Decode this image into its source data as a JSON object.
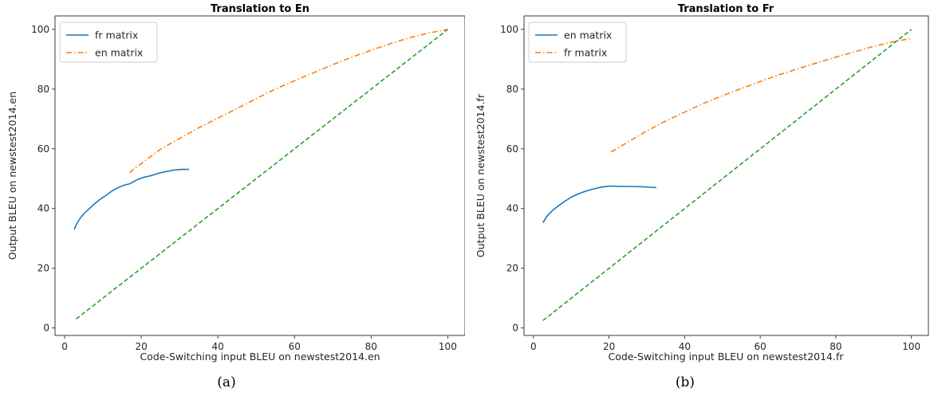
{
  "chart_data": [
    {
      "type": "line",
      "title": "Translation to En",
      "xlabel": "Code-Switching input BLEU on newstest2014.en",
      "ylabel": "Output BLEU on newstest2014.en",
      "xlim": [
        -2.5,
        104.5
      ],
      "ylim": [
        -2.5,
        104.5
      ],
      "xticks": [
        0,
        20,
        40,
        60,
        80,
        100
      ],
      "yticks": [
        0,
        20,
        40,
        60,
        80,
        100
      ],
      "grid": false,
      "legend_position": "top-left",
      "caption": "(a)",
      "series": [
        {
          "name": "fr matrix",
          "color": "#1f77b4",
          "style": "solid",
          "x": [
            2.5,
            3.2,
            4.2,
            5.2,
            6.5,
            8.0,
            9.5,
            11.0,
            12.5,
            14.0,
            15.5,
            17.0,
            18.0,
            19.0,
            20.5,
            22.5,
            24.5,
            26.5,
            28.5,
            30.5,
            32.5
          ],
          "y": [
            33.0,
            35.0,
            37.0,
            38.5,
            40.0,
            41.8,
            43.3,
            44.6,
            46.0,
            47.0,
            47.8,
            48.3,
            49.0,
            49.7,
            50.4,
            51.0,
            51.8,
            52.4,
            52.9,
            53.1,
            53.1
          ]
        },
        {
          "name": "en matrix",
          "color": "#ff7f0e",
          "style": "dashdot",
          "x": [
            17.0,
            18.0,
            20.0,
            22.0,
            25.0,
            30.0,
            35.0,
            40.0,
            45.0,
            50.0,
            55.0,
            60.0,
            65.0,
            70.0,
            75.0,
            80.0,
            85.0,
            90.0,
            95.0,
            100.0
          ],
          "y": [
            52.0,
            53.3,
            55.0,
            57.0,
            59.8,
            63.5,
            67.0,
            70.3,
            73.5,
            76.8,
            80.0,
            82.8,
            85.5,
            88.2,
            90.7,
            93.0,
            95.2,
            97.2,
            98.8,
            100.0
          ]
        },
        {
          "name": "",
          "color": "#2ca02c",
          "style": "dashed",
          "x": [
            3.0,
            100.0
          ],
          "y": [
            3.0,
            100.0
          ]
        }
      ]
    },
    {
      "type": "line",
      "title": "Translation to Fr",
      "xlabel": "Code-Switching input BLEU on newstest2014.fr",
      "ylabel": "Output BLEU on newstest2014.fr",
      "xlim": [
        -2.5,
        104.5
      ],
      "ylim": [
        -2.5,
        104.5
      ],
      "xticks": [
        0,
        20,
        40,
        60,
        80,
        100
      ],
      "yticks": [
        0,
        20,
        40,
        60,
        80,
        100
      ],
      "grid": false,
      "legend_position": "top-left",
      "caption": "(b)",
      "series": [
        {
          "name": "en matrix",
          "color": "#1f77b4",
          "style": "solid",
          "x": [
            2.5,
            3.5,
            5.0,
            6.5,
            8.0,
            10.0,
            12.0,
            14.0,
            16.0,
            18.0,
            20.0,
            21.0,
            23.0,
            26.0,
            29.0,
            32.5
          ],
          "y": [
            35.2,
            37.3,
            39.3,
            40.8,
            42.2,
            43.8,
            45.0,
            45.9,
            46.6,
            47.2,
            47.5,
            47.5,
            47.4,
            47.4,
            47.3,
            47.0
          ]
        },
        {
          "name": "fr matrix",
          "color": "#ff7f0e",
          "style": "dashdot",
          "x": [
            20.5,
            22.0,
            25.0,
            30.0,
            35.0,
            40.0,
            45.0,
            50.0,
            55.0,
            60.0,
            65.0,
            70.0,
            75.0,
            80.0,
            85.0,
            90.0,
            95.0,
            100.0
          ],
          "y": [
            59.0,
            60.0,
            62.3,
            66.0,
            69.3,
            72.3,
            75.2,
            77.8,
            80.2,
            82.5,
            84.8,
            86.8,
            88.8,
            90.7,
            92.5,
            94.3,
            95.8,
            97.0
          ]
        },
        {
          "name": "",
          "color": "#2ca02c",
          "style": "dashed",
          "x": [
            2.5,
            100.0
          ],
          "y": [
            2.5,
            100.0
          ]
        }
      ]
    }
  ]
}
